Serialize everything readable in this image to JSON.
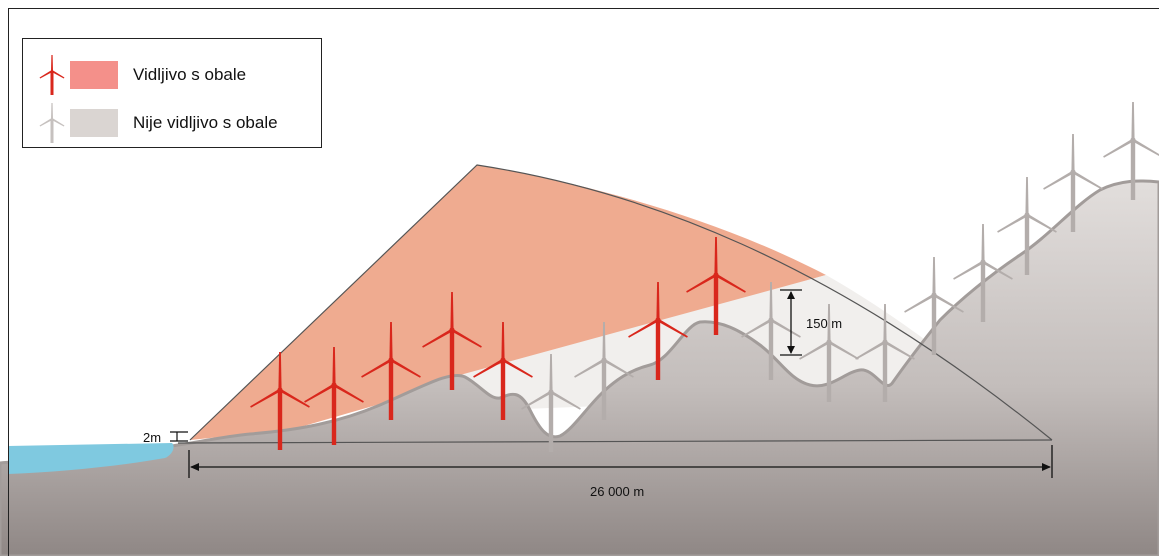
{
  "legend": {
    "visible": {
      "label": "Vidljivo s  obale",
      "color": "#f4908a",
      "icon": "wind-turbine-red-icon"
    },
    "hidden": {
      "label": "Nije vidljivo s  obale",
      "color": "#dad5d2",
      "icon": "wind-turbine-gray-icon"
    }
  },
  "measurements": {
    "observer_height": "2m",
    "turbine_height": "150 m",
    "distance": "26 000 m"
  },
  "colors": {
    "visible_zone": "#efab90",
    "hidden_zone": "#f1efed",
    "terrain_light": "#dcd8d6",
    "terrain_dark": "#8c8482",
    "sea": "#7fc9e0",
    "turbine_red": "#d9271c",
    "turbine_gray": "#b3adab"
  }
}
